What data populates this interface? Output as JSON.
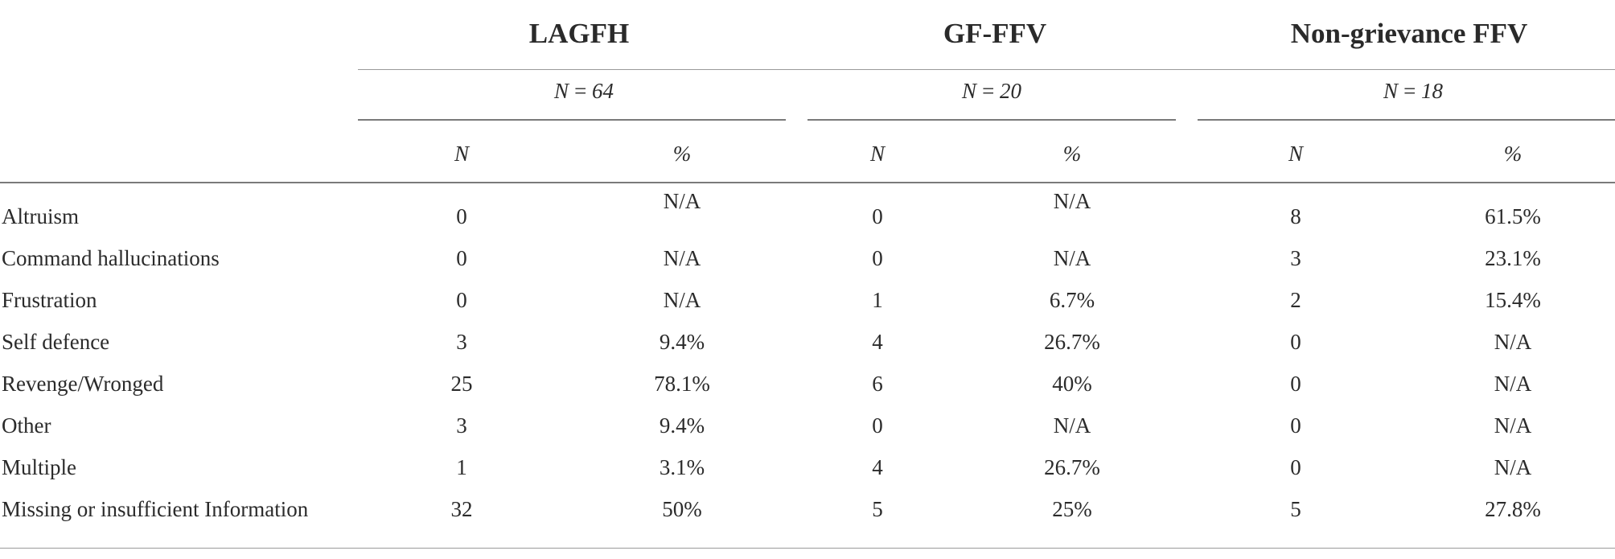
{
  "groups": [
    {
      "title": "LAGFH",
      "n_label": "N = 64"
    },
    {
      "title": "GF-FFV",
      "n_label": "N = 20"
    },
    {
      "title": "Non-grievance FFV",
      "n_label": "N = 18"
    }
  ],
  "subheaders": {
    "n": "N",
    "pct": "%"
  },
  "rows": [
    {
      "label": "Altruism",
      "cells": [
        "0",
        "N/A",
        "0",
        "N/A",
        "8",
        "61.5%"
      ]
    },
    {
      "label": "Command hallucinations",
      "cells": [
        "0",
        "N/A",
        "0",
        "N/A",
        "3",
        "23.1%"
      ]
    },
    {
      "label": "Frustration",
      "cells": [
        "0",
        "N/A",
        "1",
        "6.7%",
        "2",
        "15.4%"
      ]
    },
    {
      "label": "Self defence",
      "cells": [
        "3",
        "9.4%",
        "4",
        "26.7%",
        "0",
        "N/A"
      ]
    },
    {
      "label": "Revenge/Wronged",
      "cells": [
        "25",
        "78.1%",
        "6",
        "40%",
        "0",
        "N/A"
      ]
    },
    {
      "label": "Other",
      "cells": [
        "3",
        "9.4%",
        "0",
        "N/A",
        "0",
        "N/A"
      ]
    },
    {
      "label": "Multiple",
      "cells": [
        "1",
        "3.1%",
        "4",
        "26.7%",
        "0",
        "N/A"
      ]
    },
    {
      "label": "Missing or insufficient Information",
      "cells": [
        "32",
        "50%",
        "5",
        "25%",
        "5",
        "27.8%"
      ]
    }
  ]
}
